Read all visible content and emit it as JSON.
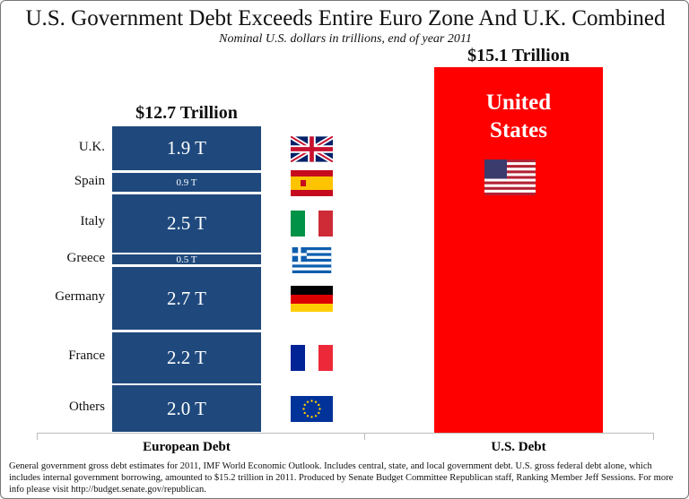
{
  "chart_data": {
    "type": "bar",
    "title": "U.S. Government Debt Exceeds Entire Euro Zone And U.K. Combined",
    "subtitle": "Nominal U.S. dollars in trillions, end of year 2011",
    "categories": [
      "European Debt",
      "U.S. Debt"
    ],
    "european": {
      "total_label": "$12.7 Trillion",
      "segments": [
        {
          "name": "U.K.",
          "value": 1.9,
          "label": "1.9 T",
          "flag": "uk-flag"
        },
        {
          "name": "Spain",
          "value": 0.9,
          "label": "0.9 T",
          "flag": "spain-flag"
        },
        {
          "name": "Italy",
          "value": 2.5,
          "label": "2.5 T",
          "flag": "italy-flag"
        },
        {
          "name": "Greece",
          "value": 0.5,
          "label": "0.5 T",
          "flag": "greece-flag"
        },
        {
          "name": "Germany",
          "value": 2.7,
          "label": "2.7 T",
          "flag": "germany-flag"
        },
        {
          "name": "France",
          "value": 2.2,
          "label": "2.2 T",
          "flag": "france-flag"
        },
        {
          "name": "Others",
          "value": 2.0,
          "label": "2.0 T",
          "flag": "eu-flag"
        }
      ]
    },
    "us": {
      "value": 15.1,
      "total_label": "$15.1 Trillion",
      "label": "United States",
      "flag": "us-flag"
    },
    "colors": {
      "europe": "#1f497d",
      "us": "#ff0000"
    }
  },
  "footnote": "General government gross debt estimates for 2011, IMF World Economic Outlook. Includes central, state, and local government debt. U.S. gross federal debt alone, which includes internal government borrowing, amounted to $15.2 trillion in 2011. Produced by Senate Budget Committee Republican staff, Ranking Member Jeff Sessions. For more info please visit http://budget.senate.gov/republican."
}
